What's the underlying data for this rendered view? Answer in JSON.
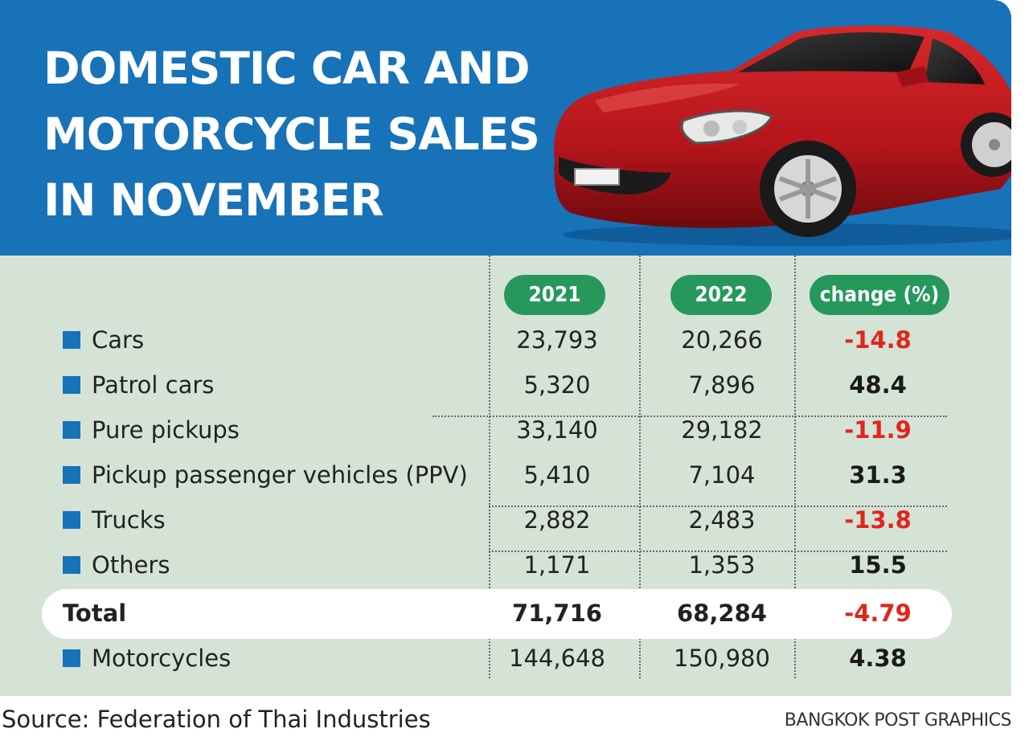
{
  "header": {
    "title_lines": [
      "DOMESTIC CAR AND",
      "MOTORCYCLE SALES",
      "IN NOVEMBER"
    ]
  },
  "columns": {
    "col1": "2021",
    "col2": "2022",
    "col3": "change (%)"
  },
  "chart_data": {
    "type": "table",
    "title": "DOMESTIC CAR AND MOTORCYCLE SALES IN NOVEMBER",
    "columns": [
      "2021",
      "2022",
      "change (%)"
    ],
    "rows": [
      {
        "label": "Cars",
        "v2021": "23,793",
        "v2022": "20,266",
        "change": "-14.8"
      },
      {
        "label": "Patrol cars",
        "v2021": "5,320",
        "v2022": "7,896",
        "change": "48.4"
      },
      {
        "label": "Pure pickups",
        "v2021": "33,140",
        "v2022": "29,182",
        "change": "-11.9"
      },
      {
        "label": "Pickup passenger vehicles (PPV)",
        "v2021": "5,410",
        "v2022": "7,104",
        "change": "31.3"
      },
      {
        "label": "Trucks",
        "v2021": "2,882",
        "v2022": "2,483",
        "change": "-13.8"
      },
      {
        "label": "Others",
        "v2021": "1,171",
        "v2022": "1,353",
        "change": "15.5"
      },
      {
        "label": "Total",
        "v2021": "71,716",
        "v2022": "68,284",
        "change": "-4.79"
      },
      {
        "label": "Motorcycles",
        "v2021": "144,648",
        "v2022": "150,980",
        "change": "4.38"
      }
    ]
  },
  "colors": {
    "header_blue": "#1772b8",
    "panel_green": "#d5e3d6",
    "pill_green": "#27985c",
    "negative_red": "#e0261d",
    "car_red": "#b3151b"
  },
  "footer": {
    "source": "Source: Federation of Thai Industries",
    "credit": "BANGKOK POST GRAPHICS"
  },
  "icons": {
    "car": "red-sports-car-illustration",
    "bullet": "blue-square"
  }
}
